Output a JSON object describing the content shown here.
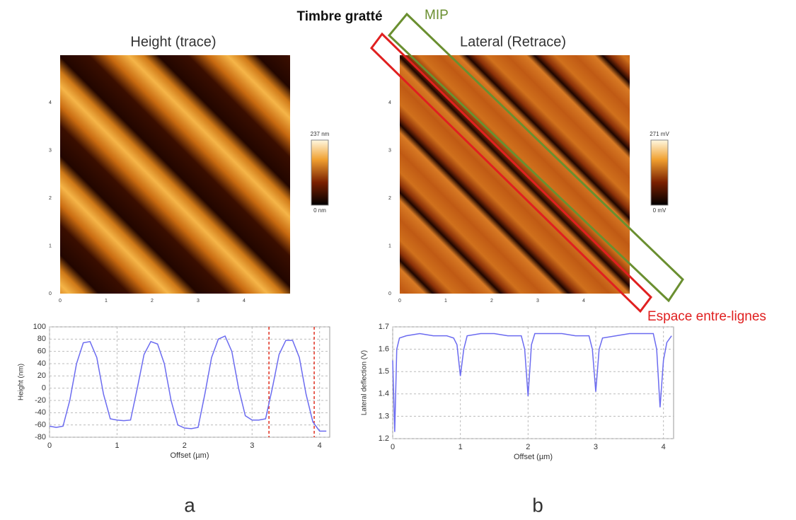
{
  "figure": {
    "title": "Timbre gratté",
    "annotations": [
      "MIP",
      "Espace entre-lignes"
    ],
    "panel_labels": [
      "a",
      "b"
    ],
    "images": [
      {
        "title": "Height (trace)",
        "xlim": [
          0,
          5
        ],
        "xticks": [
          0,
          1,
          2,
          3,
          4
        ],
        "yticks": [
          0,
          1,
          2,
          3,
          4
        ],
        "scale_max": "237 nm",
        "scale_min": "0 nm"
      },
      {
        "title": "Lateral (Retrace)",
        "xlim": [
          0,
          5
        ],
        "xticks": [
          0,
          1,
          2,
          3,
          4
        ],
        "yticks": [
          0,
          1,
          2,
          3,
          4
        ],
        "scale_max": "271 mV",
        "scale_min": "0 mV"
      }
    ]
  },
  "chart_data": [
    {
      "type": "line",
      "x_label": "Offset (µm)",
      "y_label": "Height (nm)",
      "xlim": [
        0,
        4.15
      ],
      "xticks": [
        0,
        1,
        2,
        3,
        4
      ],
      "ylim": [
        -80,
        100
      ],
      "yticks": [
        -80,
        -60,
        -40,
        -20,
        0,
        20,
        40,
        60,
        80,
        100
      ],
      "grid": true,
      "cursors": [
        3.25,
        3.92
      ],
      "cursor_color": "#e03020",
      "x": [
        0,
        0.1,
        0.2,
        0.3,
        0.4,
        0.5,
        0.6,
        0.7,
        0.8,
        0.9,
        1.0,
        1.1,
        1.2,
        1.3,
        1.4,
        1.5,
        1.6,
        1.7,
        1.8,
        1.9,
        2.0,
        2.1,
        2.2,
        2.3,
        2.4,
        2.5,
        2.6,
        2.7,
        2.8,
        2.9,
        3.0,
        3.1,
        3.2,
        3.3,
        3.4,
        3.5,
        3.6,
        3.7,
        3.8,
        3.9,
        4.0,
        4.1
      ],
      "series": [
        {
          "color": "#6b6bf0",
          "values": [
            -62,
            -64,
            -62,
            -20,
            40,
            74,
            76,
            50,
            -10,
            -50,
            -52,
            -53,
            -52,
            0,
            55,
            76,
            72,
            40,
            -20,
            -60,
            -65,
            -66,
            -64,
            -10,
            50,
            80,
            85,
            60,
            0,
            -45,
            -52,
            -52,
            -50,
            0,
            55,
            78,
            78,
            50,
            -10,
            -55,
            -70,
            -70
          ]
        }
      ]
    },
    {
      "type": "line",
      "x_label": "Offset (µm)",
      "y_label": "Lateral deflection (V)",
      "xlim": [
        0,
        4.15
      ],
      "xticks": [
        0,
        1,
        2,
        3,
        4
      ],
      "ylim": [
        1.2,
        1.7
      ],
      "yticks": [
        1.2,
        1.3,
        1.4,
        1.5,
        1.6,
        1.7
      ],
      "grid": true,
      "x": [
        0,
        0.03,
        0.06,
        0.1,
        0.2,
        0.4,
        0.6,
        0.8,
        0.9,
        0.95,
        1.0,
        1.05,
        1.1,
        1.3,
        1.5,
        1.7,
        1.9,
        1.95,
        2.0,
        2.05,
        2.1,
        2.3,
        2.5,
        2.7,
        2.9,
        2.95,
        3.0,
        3.05,
        3.1,
        3.3,
        3.5,
        3.7,
        3.85,
        3.9,
        3.95,
        4.0,
        4.05,
        4.12
      ],
      "series": [
        {
          "color": "#6b6bf0",
          "values": [
            1.55,
            1.23,
            1.6,
            1.65,
            1.66,
            1.67,
            1.66,
            1.66,
            1.65,
            1.62,
            1.48,
            1.6,
            1.66,
            1.67,
            1.67,
            1.66,
            1.66,
            1.6,
            1.39,
            1.62,
            1.67,
            1.67,
            1.67,
            1.66,
            1.66,
            1.6,
            1.41,
            1.6,
            1.65,
            1.66,
            1.67,
            1.67,
            1.67,
            1.6,
            1.34,
            1.55,
            1.63,
            1.66
          ]
        }
      ]
    }
  ]
}
